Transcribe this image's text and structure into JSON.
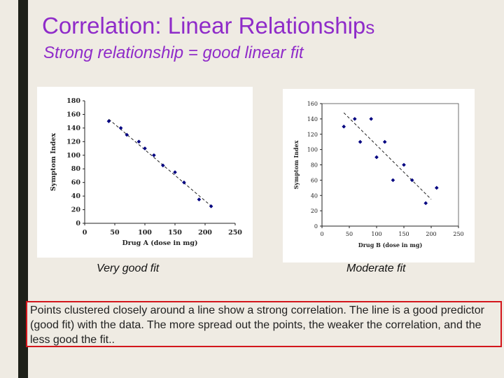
{
  "title": "Correlation:  Linear Relationship",
  "title_suffix": "s",
  "subtitle": "Strong relationship = good linear fit",
  "labels": {
    "left_fit": "Very good fit",
    "right_fit": "Moderate fit"
  },
  "note": "Points clustered closely around a line show a strong correlation. The line is a good predictor (good fit) with the data.  The more spread out the points, the weaker the correlation, and the less good the fit..",
  "colors": {
    "title": "#8f2bc9",
    "note_border": "#d3161c",
    "points": "#000080",
    "background": "#efebe3"
  },
  "chart_data": [
    {
      "type": "scatter",
      "xlabel": "Drug A (dose in mg)",
      "ylabel": "Symptom Index",
      "xlim": [
        0,
        250
      ],
      "ylim": [
        0,
        180
      ],
      "x_ticks": [
        "0",
        "50",
        "100",
        "150",
        "200",
        "250"
      ],
      "y_ticks": [
        "0",
        "20",
        "40",
        "60",
        "80",
        "100",
        "120",
        "140",
        "160",
        "180"
      ],
      "points": [
        {
          "x": 40,
          "y": 150
        },
        {
          "x": 60,
          "y": 140
        },
        {
          "x": 70,
          "y": 130
        },
        {
          "x": 90,
          "y": 120
        },
        {
          "x": 100,
          "y": 110
        },
        {
          "x": 115,
          "y": 100
        },
        {
          "x": 130,
          "y": 85
        },
        {
          "x": 150,
          "y": 75
        },
        {
          "x": 165,
          "y": 60
        },
        {
          "x": 190,
          "y": 35
        },
        {
          "x": 210,
          "y": 25
        }
      ],
      "trendline": [
        {
          "x": 40,
          "y": 153
        },
        {
          "x": 212,
          "y": 24
        }
      ]
    },
    {
      "type": "scatter",
      "xlabel": "Drug B (dose in mg)",
      "ylabel": "Symptom Index",
      "xlim": [
        0,
        250
      ],
      "ylim": [
        0,
        160
      ],
      "x_ticks": [
        "0",
        "50",
        "100",
        "150",
        "200",
        "250"
      ],
      "y_ticks": [
        "0",
        "20",
        "40",
        "60",
        "80",
        "100",
        "120",
        "140",
        "160"
      ],
      "points": [
        {
          "x": 40,
          "y": 130
        },
        {
          "x": 60,
          "y": 140
        },
        {
          "x": 70,
          "y": 110
        },
        {
          "x": 90,
          "y": 140
        },
        {
          "x": 100,
          "y": 90
        },
        {
          "x": 115,
          "y": 110
        },
        {
          "x": 130,
          "y": 60
        },
        {
          "x": 150,
          "y": 80
        },
        {
          "x": 165,
          "y": 60
        },
        {
          "x": 190,
          "y": 30
        },
        {
          "x": 210,
          "y": 50
        }
      ],
      "trendline": [
        {
          "x": 40,
          "y": 148
        },
        {
          "x": 200,
          "y": 35
        }
      ]
    }
  ]
}
